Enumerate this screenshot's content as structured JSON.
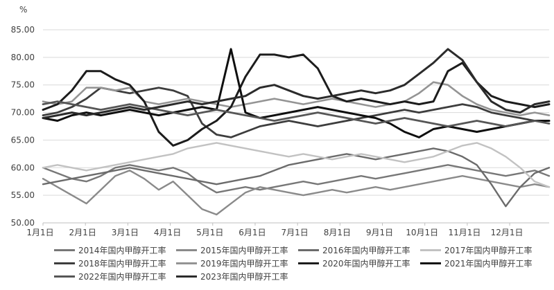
{
  "header": {
    "y_axis_unit": "%"
  },
  "chart_data": {
    "type": "line",
    "title": "",
    "xlabel": "",
    "ylabel": "%",
    "ylim": [
      50,
      85
    ],
    "y_tick_step": 5,
    "y_tick_labels": [
      "50.00",
      "55.00",
      "60.00",
      "65.00",
      "70.00",
      "75.00",
      "80.00",
      "85.00"
    ],
    "x_tick_labels": [
      "1月1日",
      "2月1日",
      "3月1日",
      "4月1日",
      "5月1日",
      "6月1日",
      "7月1日",
      "8月1日",
      "9月1日",
      "10月1日",
      "11月1日",
      "12月1日"
    ],
    "grid": true,
    "legend_position": "bottom",
    "axis_color": "#bfbfbf",
    "grid_color": "#d9d9d9",
    "series": [
      {
        "name": "2014年国内甲醇开工率",
        "color": "#777777",
        "width": 2.4,
        "values": [
          60.0,
          59.0,
          58.0,
          57.5,
          58.5,
          60.0,
          60.5,
          60.0,
          59.5,
          60.0,
          59.0,
          57.0,
          55.5,
          56.0,
          56.5,
          56.0,
          56.5,
          57.0,
          57.5,
          57.0,
          57.5,
          58.0,
          58.5,
          58.0,
          58.5,
          59.0,
          59.5,
          60.0,
          60.5,
          60.0,
          59.5,
          59.0,
          58.5,
          59.0,
          59.5,
          58.5
        ]
      },
      {
        "name": "2015年国内甲醇开工率",
        "color": "#8a8a8a",
        "width": 2.4,
        "values": [
          58.0,
          56.5,
          55.0,
          53.5,
          56.0,
          58.5,
          59.5,
          58.0,
          56.0,
          57.5,
          55.0,
          52.5,
          51.5,
          53.5,
          55.5,
          56.5,
          56.0,
          55.5,
          55.0,
          55.5,
          56.0,
          55.5,
          56.0,
          56.5,
          56.0,
          56.5,
          57.0,
          57.5,
          58.0,
          58.5,
          58.0,
          57.5,
          57.0,
          56.5,
          57.0,
          56.5
        ]
      },
      {
        "name": "2016年国内甲醇开工率",
        "color": "#6b6b6b",
        "width": 2.4,
        "values": [
          57.0,
          57.5,
          58.0,
          58.5,
          59.0,
          59.5,
          60.0,
          59.5,
          59.0,
          58.5,
          58.0,
          57.5,
          57.0,
          57.5,
          58.0,
          58.5,
          59.5,
          60.5,
          61.0,
          61.5,
          62.0,
          62.5,
          62.0,
          61.5,
          62.0,
          62.5,
          63.0,
          63.5,
          63.0,
          62.0,
          60.5,
          57.0,
          53.0,
          56.5,
          59.0,
          60.0
        ]
      },
      {
        "name": "2017年国内甲醇开工率",
        "color": "#c2c2c2",
        "width": 2.4,
        "values": [
          60.0,
          60.5,
          60.0,
          59.5,
          60.0,
          60.5,
          61.0,
          61.5,
          62.0,
          62.5,
          63.5,
          64.0,
          64.5,
          64.0,
          63.5,
          63.0,
          62.5,
          62.0,
          62.5,
          62.0,
          61.5,
          62.0,
          62.5,
          62.0,
          61.5,
          61.0,
          61.5,
          62.0,
          63.0,
          64.0,
          64.5,
          63.5,
          62.0,
          60.0,
          57.5,
          56.5
        ]
      },
      {
        "name": "2018年国内甲醇开工率",
        "color": "#3d3d3d",
        "width": 2.8,
        "values": [
          69.5,
          70.0,
          71.0,
          72.5,
          74.5,
          74.0,
          73.5,
          74.0,
          74.5,
          74.0,
          73.0,
          68.0,
          66.0,
          65.5,
          66.5,
          67.5,
          68.0,
          68.5,
          68.0,
          67.5,
          68.0,
          68.5,
          69.0,
          69.5,
          70.0,
          70.5,
          70.0,
          70.5,
          71.0,
          71.5,
          71.0,
          70.0,
          69.5,
          69.0,
          68.5,
          68.5
        ]
      },
      {
        "name": "2019年国内甲醇开工率",
        "color": "#949494",
        "width": 2.6,
        "values": [
          72.0,
          71.5,
          72.0,
          74.5,
          74.5,
          74.0,
          74.5,
          72.0,
          71.5,
          72.0,
          72.5,
          72.0,
          71.5,
          71.0,
          71.5,
          72.0,
          72.5,
          72.0,
          71.5,
          72.0,
          72.5,
          72.0,
          71.5,
          71.0,
          71.5,
          72.0,
          73.5,
          75.5,
          75.0,
          73.0,
          71.5,
          70.5,
          70.0,
          69.5,
          70.0,
          69.5
        ]
      },
      {
        "name": "2020年国内甲醇开工率",
        "color": "#1c1c1c",
        "width": 3.0,
        "values": [
          70.5,
          71.5,
          74.0,
          77.5,
          77.5,
          76.0,
          75.0,
          72.0,
          66.5,
          64.0,
          65.0,
          67.0,
          68.5,
          71.0,
          76.5,
          80.5,
          80.5,
          80.0,
          80.5,
          78.0,
          73.0,
          72.0,
          72.5,
          72.0,
          71.5,
          72.0,
          71.5,
          72.0,
          77.5,
          79.0,
          75.5,
          73.0,
          72.0,
          71.5,
          71.0,
          71.5
        ]
      },
      {
        "name": "2021年国内甲醇开工率",
        "color": "#0f0f0f",
        "width": 3.0,
        "values": [
          69.0,
          68.5,
          69.5,
          70.0,
          69.5,
          70.0,
          70.5,
          70.0,
          69.5,
          70.0,
          70.5,
          71.0,
          70.5,
          81.5,
          70.0,
          69.0,
          69.5,
          70.0,
          70.5,
          71.0,
          70.5,
          70.0,
          69.5,
          69.0,
          68.0,
          66.5,
          65.5,
          67.0,
          67.5,
          67.0,
          66.5,
          67.0,
          67.5,
          68.0,
          68.5,
          68.5
        ]
      },
      {
        "name": "2022年国内甲醇开工率",
        "color": "#565656",
        "width": 2.8,
        "values": [
          71.5,
          72.0,
          71.5,
          71.0,
          70.5,
          71.0,
          71.5,
          71.0,
          70.5,
          70.0,
          69.5,
          70.0,
          70.5,
          70.0,
          69.5,
          69.0,
          68.5,
          69.0,
          69.5,
          70.0,
          69.5,
          69.0,
          68.5,
          68.0,
          68.5,
          69.0,
          68.5,
          68.0,
          67.5,
          68.0,
          68.5,
          68.0,
          67.5,
          68.0,
          68.5,
          68.0
        ]
      },
      {
        "name": "2023年国内甲醇开工率",
        "color": "#2b2b2b",
        "width": 3.0,
        "values": [
          69.0,
          69.5,
          70.0,
          69.5,
          70.0,
          70.5,
          71.0,
          70.5,
          71.0,
          71.5,
          72.0,
          71.5,
          72.0,
          72.5,
          73.0,
          74.5,
          75.0,
          74.0,
          73.0,
          72.5,
          73.0,
          73.5,
          74.0,
          73.5,
          74.0,
          75.0,
          77.0,
          79.0,
          81.5,
          79.5,
          75.5,
          72.0,
          70.5,
          70.0,
          71.5,
          72.0
        ]
      }
    ]
  }
}
